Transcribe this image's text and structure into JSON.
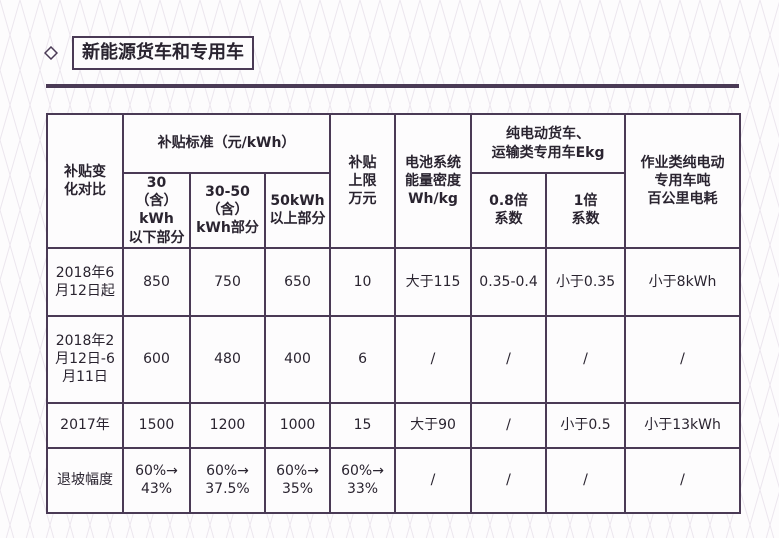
{
  "header": {
    "title": "新能源货车和专用车"
  },
  "colors": {
    "accent": "#4a3a55",
    "background": "#fdfcfd"
  },
  "icons": {
    "title_marker": "diamond-icon"
  },
  "table": {
    "corner_label": "补贴变\n化对比",
    "subsidy_header": "补贴标准（元/kWh）",
    "subsidy_sub": [
      "30（含）\nkWh\n以下部分",
      "30-50\n（含）\nkWh部分",
      "50kWh\n以上部分"
    ],
    "cap_header": "补贴\n上限\n万元",
    "density_header": "电池系统\n能量密度\nWh/kg",
    "ekg_header": "纯电动货车、\n运输类专用车Ekg",
    "ekg_sub": [
      "0.8倍\n系数",
      "1倍\n系数"
    ],
    "consumption_header": "作业类纯电动\n专用车吨\n百公里电耗",
    "rows": [
      {
        "label": "2018年6\n月12日起",
        "cells": [
          "850",
          "750",
          "650",
          "10",
          "大于115",
          "0.35-0.4",
          "小于0.35",
          "小于8kWh"
        ]
      },
      {
        "label": "2018年2\n月12日-6\n月11日",
        "cells": [
          "600",
          "480",
          "400",
          "6",
          "/",
          "/",
          "/",
          "/"
        ]
      },
      {
        "label": "2017年",
        "cells": [
          "1500",
          "1200",
          "1000",
          "15",
          "大于90",
          "/",
          "小于0.5",
          "小于13kWh"
        ]
      },
      {
        "label": "退坡幅度",
        "cells": [
          "60%→\n43%",
          "60%→\n37.5%",
          "60%→\n35%",
          "60%→\n33%",
          "/",
          "/",
          "/",
          "/"
        ]
      }
    ]
  }
}
